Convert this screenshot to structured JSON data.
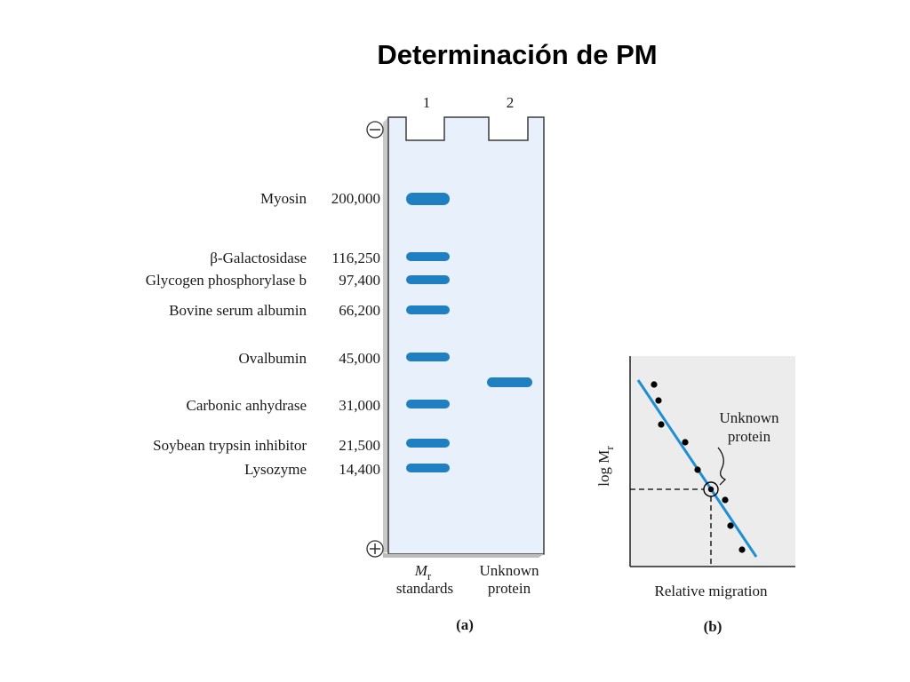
{
  "title": "Determinación de PM",
  "gel": {
    "lane_numbers": [
      "1",
      "2"
    ],
    "minus_sign": "−",
    "plus_sign": "+",
    "standards": [
      {
        "name": "Myosin",
        "mw": "200,000"
      },
      {
        "name": "β-Galactosidase",
        "mw": "116,250"
      },
      {
        "name": "Glycogen phosphorylase b",
        "mw": "97,400"
      },
      {
        "name": "Bovine serum albumin",
        "mw": "66,200"
      },
      {
        "name": "Ovalbumin",
        "mw": "45,000"
      },
      {
        "name": "Carbonic anhydrase",
        "mw": "31,000"
      },
      {
        "name": "Soybean trypsin inhibitor",
        "mw": "21,500"
      },
      {
        "name": "Lysozyme",
        "mw": "14,400"
      }
    ],
    "lane1_caption_line1": "M",
    "lane1_caption_sub": "r",
    "lane1_caption_line2": "standards",
    "lane2_caption_line1": "Unknown",
    "lane2_caption_line2": "protein",
    "panel_label": "(a)",
    "band_color": "#1f7fc0",
    "gel_color": "#e8f1fb"
  },
  "plot": {
    "ylabel": "log M",
    "ylabel_sub": "r",
    "xlabel": "Relative migration",
    "annotation_line1": "Unknown",
    "annotation_line2": "protein",
    "panel_label": "(b)",
    "line_color": "#1e8fd0",
    "background": "#ececec"
  }
}
